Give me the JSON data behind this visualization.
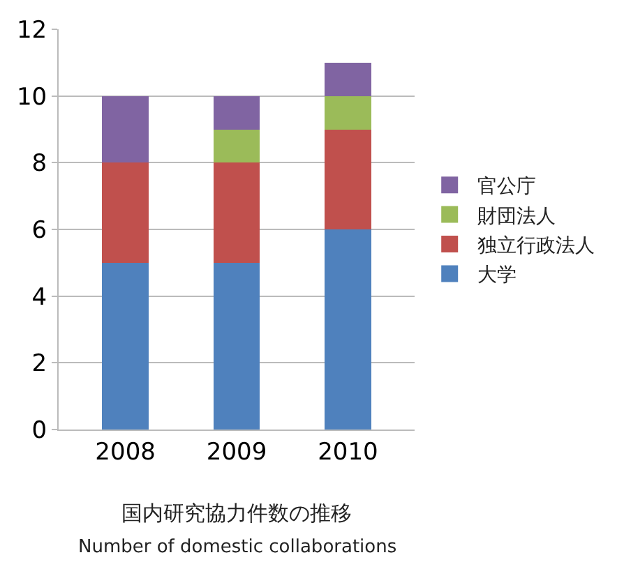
{
  "chart_data": {
    "type": "bar",
    "stacked": true,
    "title": "国内研究協力件数の推移",
    "subtitle": "Number of domestic collaborations",
    "categories": [
      "2008",
      "2009",
      "2010"
    ],
    "series": [
      {
        "name": "大学",
        "color": "#4f81bd",
        "values": [
          5,
          5,
          6
        ]
      },
      {
        "name": "独立行政法人",
        "color": "#c0504d",
        "values": [
          3,
          3,
          3
        ]
      },
      {
        "name": "財団法人",
        "color": "#9bbb59",
        "values": [
          0,
          1,
          1
        ]
      },
      {
        "name": "官公庁",
        "color": "#8064a2",
        "values": [
          2,
          1,
          1
        ]
      }
    ],
    "ylim": [
      0,
      12
    ],
    "yticks": [
      0,
      2,
      4,
      6,
      8,
      10,
      12
    ],
    "grid": "y",
    "legend": "right"
  }
}
